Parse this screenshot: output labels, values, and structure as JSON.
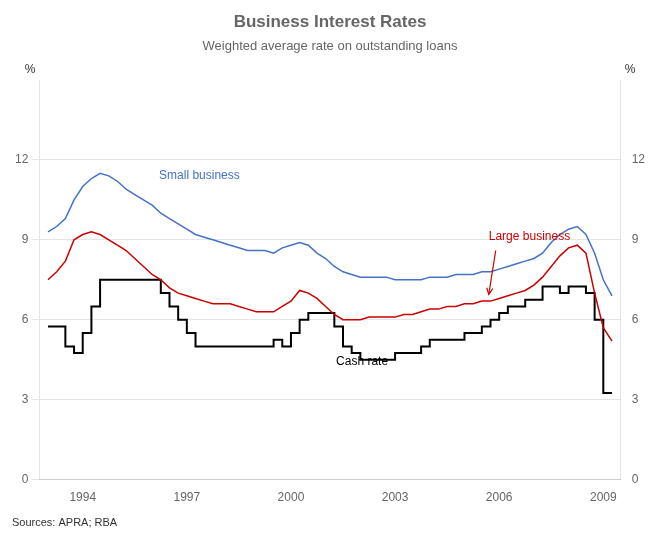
{
  "chart_data": {
    "type": "line",
    "title": "Business Interest Rates",
    "subtitle": "Weighted average rate on outstanding loans",
    "source": "Sources: APRA; RBA",
    "y_label": "%",
    "y2_label": "%",
    "xlim": [
      1992.75,
      2009.5
    ],
    "xticks": [
      1994,
      1997,
      2000,
      2003,
      2006,
      2009
    ],
    "ylim": [
      0,
      15
    ],
    "yticks": [
      0,
      3,
      6,
      9,
      12
    ],
    "y2lim": [
      0,
      15
    ],
    "y2ticks": [
      0,
      3,
      6,
      9,
      12
    ],
    "grid": "y",
    "series": [
      {
        "name": "Small business",
        "color": "#4472C4",
        "type": "line",
        "x": [
          1993.0,
          1993.25,
          1993.5,
          1993.75,
          1994.0,
          1994.25,
          1994.5,
          1994.75,
          1995.0,
          1995.25,
          1995.5,
          1995.75,
          1996.0,
          1996.25,
          1996.5,
          1996.75,
          1997.0,
          1997.25,
          1997.5,
          1997.75,
          1998.0,
          1998.25,
          1998.5,
          1998.75,
          1999.0,
          1999.25,
          1999.5,
          1999.75,
          2000.0,
          2000.25,
          2000.5,
          2000.75,
          2001.0,
          2001.25,
          2001.5,
          2001.75,
          2002.0,
          2002.25,
          2002.5,
          2002.75,
          2003.0,
          2003.25,
          2003.5,
          2003.75,
          2004.0,
          2004.25,
          2004.5,
          2004.75,
          2005.0,
          2005.25,
          2005.5,
          2005.75,
          2006.0,
          2006.25,
          2006.5,
          2006.75,
          2007.0,
          2007.25,
          2007.5,
          2007.75,
          2008.0,
          2008.25,
          2008.5,
          2008.75,
          2009.0,
          2009.25
        ],
        "values": [
          9.3,
          9.5,
          9.8,
          10.5,
          11.0,
          11.3,
          11.5,
          11.4,
          11.2,
          10.9,
          10.7,
          10.5,
          10.3,
          10.0,
          9.8,
          9.6,
          9.4,
          9.2,
          9.1,
          9.0,
          8.9,
          8.8,
          8.7,
          8.6,
          8.6,
          8.6,
          8.5,
          8.7,
          8.8,
          8.9,
          8.8,
          8.5,
          8.3,
          8.0,
          7.8,
          7.7,
          7.6,
          7.6,
          7.6,
          7.6,
          7.5,
          7.5,
          7.5,
          7.5,
          7.6,
          7.6,
          7.6,
          7.7,
          7.7,
          7.7,
          7.8,
          7.8,
          7.9,
          8.0,
          8.1,
          8.2,
          8.3,
          8.5,
          8.9,
          9.2,
          9.4,
          9.5,
          9.2,
          8.5,
          7.5,
          6.9
        ]
      },
      {
        "name": "Large business",
        "color": "#CC0000",
        "type": "line",
        "x": [
          1993.0,
          1993.25,
          1993.5,
          1993.75,
          1994.0,
          1994.25,
          1994.5,
          1994.75,
          1995.0,
          1995.25,
          1995.5,
          1995.75,
          1996.0,
          1996.25,
          1996.5,
          1996.75,
          1997.0,
          1997.25,
          1997.5,
          1997.75,
          1998.0,
          1998.25,
          1998.5,
          1998.75,
          1999.0,
          1999.25,
          1999.5,
          1999.75,
          2000.0,
          2000.25,
          2000.5,
          2000.75,
          2001.0,
          2001.25,
          2001.5,
          2001.75,
          2002.0,
          2002.25,
          2002.5,
          2002.75,
          2003.0,
          2003.25,
          2003.5,
          2003.75,
          2004.0,
          2004.25,
          2004.5,
          2004.75,
          2005.0,
          2005.25,
          2005.5,
          2005.75,
          2006.0,
          2006.25,
          2006.5,
          2006.75,
          2007.0,
          2007.25,
          2007.5,
          2007.75,
          2008.0,
          2008.25,
          2008.5,
          2008.75,
          2009.0,
          2009.25
        ],
        "values": [
          7.5,
          7.8,
          8.2,
          9.0,
          9.2,
          9.3,
          9.2,
          9.0,
          8.8,
          8.6,
          8.3,
          8.0,
          7.7,
          7.5,
          7.2,
          7.0,
          6.9,
          6.8,
          6.7,
          6.6,
          6.6,
          6.6,
          6.5,
          6.4,
          6.3,
          6.3,
          6.3,
          6.5,
          6.7,
          7.1,
          7.0,
          6.8,
          6.5,
          6.2,
          6.0,
          6.0,
          6.0,
          6.1,
          6.1,
          6.1,
          6.1,
          6.2,
          6.2,
          6.3,
          6.4,
          6.4,
          6.5,
          6.5,
          6.6,
          6.6,
          6.7,
          6.7,
          6.8,
          6.9,
          7.0,
          7.1,
          7.3,
          7.6,
          8.0,
          8.4,
          8.7,
          8.8,
          8.5,
          7.0,
          5.7,
          5.2
        ]
      },
      {
        "name": "Cash rate",
        "color": "#000000",
        "type": "step",
        "x": [
          1993.0,
          1993.5,
          1993.75,
          1994.0,
          1994.25,
          1994.5,
          1994.75,
          1995.0,
          1995.25,
          1995.75,
          1996.0,
          1996.25,
          1996.5,
          1996.75,
          1997.0,
          1997.25,
          1997.5,
          1997.75,
          1998.0,
          1999.0,
          1999.5,
          1999.75,
          2000.0,
          2000.25,
          2000.5,
          2000.75,
          2001.0,
          2001.25,
          2001.5,
          2001.75,
          2002.0,
          2002.75,
          2003.0,
          2003.5,
          2003.75,
          2004.0,
          2004.75,
          2005.0,
          2005.5,
          2005.75,
          2006.0,
          2006.25,
          2006.5,
          2006.75,
          2007.0,
          2007.25,
          2007.75,
          2008.0,
          2008.25,
          2008.5,
          2008.75,
          2009.0,
          2009.25
        ],
        "values": [
          5.75,
          5.0,
          4.75,
          5.5,
          6.5,
          7.5,
          7.5,
          7.5,
          7.5,
          7.5,
          7.5,
          7.0,
          6.5,
          6.0,
          5.5,
          5.0,
          5.0,
          5.0,
          5.0,
          5.0,
          5.25,
          5.0,
          5.5,
          6.0,
          6.25,
          6.25,
          6.25,
          5.75,
          5.0,
          4.75,
          4.5,
          4.5,
          4.75,
          4.75,
          5.0,
          5.25,
          5.25,
          5.5,
          5.75,
          6.0,
          6.25,
          6.5,
          6.5,
          6.75,
          6.75,
          7.25,
          7.0,
          7.25,
          7.25,
          7.0,
          6.0,
          3.25,
          3.25
        ]
      }
    ],
    "annotations": [
      {
        "text": "Small business",
        "x": 1996.2,
        "y": 11.3
      },
      {
        "text": "Large business",
        "x": 2005.7,
        "y": 9.0,
        "arrow": {
          "from": [
            2005.9,
            8.6
          ],
          "to": [
            2005.7,
            6.95
          ]
        }
      },
      {
        "text": "Cash rate",
        "x": 2001.3,
        "y": 4.3
      }
    ]
  }
}
